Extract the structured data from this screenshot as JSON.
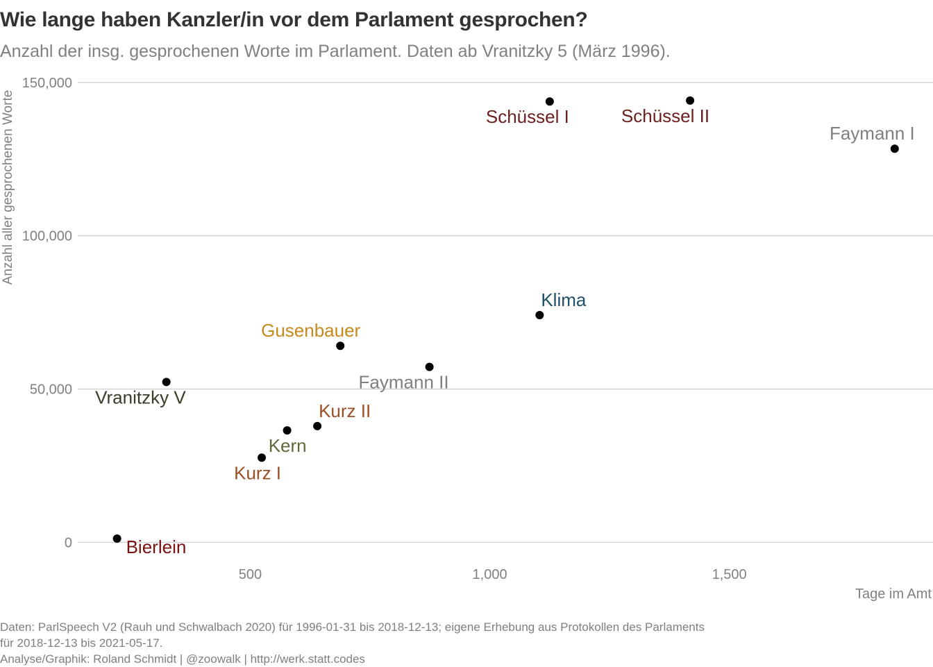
{
  "chart_data": {
    "type": "scatter",
    "title": "Wie lange haben Kanzler/in vor dem Parlament gesprochen?",
    "subtitle": "Anzahl der insg. gesprochenen Worte im Parlament. Daten ab Vranitzky 5 (März 1996).",
    "xlabel": "Tage im Amt",
    "ylabel": "Anzahl aller gesprochenen Worte",
    "xlim": [
      140,
      1925
    ],
    "ylim": [
      -6500,
      152000
    ],
    "x_ticks": [
      500,
      1000,
      1500
    ],
    "x_tick_labels": [
      "500",
      "1,000",
      "1,500"
    ],
    "y_ticks": [
      0,
      50000,
      100000,
      150000
    ],
    "y_tick_labels": [
      "0",
      "50,000",
      "100,000",
      "150,000"
    ],
    "grid": "horizontal",
    "legend": "none",
    "points": [
      {
        "label": "Schüssel I",
        "x": 1125,
        "y": 143800,
        "color": "#6b1f1f",
        "label_pos": "below-left"
      },
      {
        "label": "Schüssel II",
        "x": 1418,
        "y": 144100,
        "color": "#6b1f1f",
        "label_pos": "below-left"
      },
      {
        "label": "Faymann I",
        "x": 1845,
        "y": 128400,
        "color": "#7f7f7f",
        "label_pos": "above-left"
      },
      {
        "label": "Klima",
        "x": 1104,
        "y": 74100,
        "color": "#1f4e68",
        "label_pos": "above-right"
      },
      {
        "label": "Gusenbauer",
        "x": 688,
        "y": 64100,
        "color": "#c68a1c",
        "label_pos": "above-left"
      },
      {
        "label": "Faymann II",
        "x": 874,
        "y": 57200,
        "color": "#7f7f7f",
        "label_pos": "below-left"
      },
      {
        "label": "Vranitzky V",
        "x": 325,
        "y": 52300,
        "color": "#3b3d29",
        "label_pos": "below-left"
      },
      {
        "label": "Kurz II",
        "x": 640,
        "y": 37900,
        "color": "#9a4f24",
        "label_pos": "above-right"
      },
      {
        "label": "Kern",
        "x": 577,
        "y": 36500,
        "color": "#5b6b38",
        "label_pos": "below-left"
      },
      {
        "label": "Kurz I",
        "x": 524,
        "y": 27600,
        "color": "#9a4f24",
        "label_pos": "below-left"
      },
      {
        "label": "Bierlein",
        "x": 222,
        "y": 1200,
        "color": "#7a1010",
        "label_pos": "below-right"
      }
    ]
  },
  "caption": {
    "line1": "Daten: ParlSpeech V2 (Rauh und Schwalbach 2020) für 1996-01-31 bis 2018-12-13; eigene Erhebung aus Protokollen des Parlaments",
    "line2": "für 2018-12-13 bis 2021-05-17.",
    "line3": "Analyse/Graphik: Roland Schmidt | @zoowalk | http://werk.statt.codes"
  },
  "colors": {
    "grid": "#cccccc",
    "axis_text": "#808080",
    "title": "#333333",
    "point": "#000000"
  }
}
